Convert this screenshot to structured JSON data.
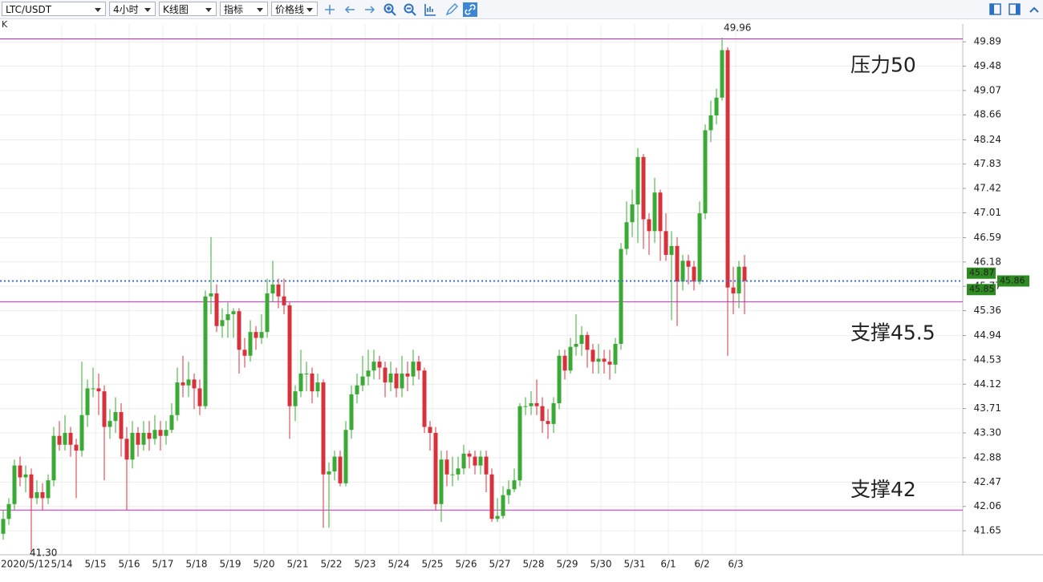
{
  "toolbar": {
    "symbol": "LTC/USDT",
    "period": "4小时",
    "chart_type": "K线图",
    "indicator": "指标",
    "price_line": "价格线"
  },
  "chart_data": {
    "type": "candlestick",
    "title": "K",
    "ylim": [
      41.3,
      50.19
    ],
    "yticks": [
      49.89,
      49.48,
      49.07,
      48.66,
      48.24,
      47.83,
      47.42,
      47.01,
      46.59,
      46.18,
      45.77,
      45.36,
      44.94,
      44.53,
      44.12,
      43.71,
      {
        "value": 43.3,
        "label": "43.30"
      },
      42.88,
      42.47,
      42.06,
      41.65
    ],
    "grid": true,
    "up_color": "#3aa935",
    "down_color": "#d7313c",
    "categories": [
      "2020/5/12",
      null,
      null,
      null,
      null,
      null,
      null,
      null,
      null,
      null,
      null,
      "5/14",
      null,
      null,
      null,
      null,
      null,
      "5/15",
      null,
      null,
      null,
      null,
      null,
      "5/16",
      null,
      null,
      null,
      null,
      null,
      "5/17",
      null,
      null,
      null,
      null,
      null,
      "5/18",
      null,
      null,
      null,
      null,
      null,
      "5/19",
      null,
      null,
      null,
      null,
      null,
      "5/20",
      null,
      null,
      null,
      null,
      null,
      "5/21",
      null,
      null,
      null,
      null,
      null,
      "5/22",
      null,
      null,
      null,
      null,
      null,
      "5/23",
      null,
      null,
      null,
      null,
      null,
      "5/24",
      null,
      null,
      null,
      null,
      null,
      "5/25",
      null,
      null,
      null,
      null,
      null,
      "5/26",
      null,
      null,
      null,
      null,
      null,
      "5/27",
      null,
      null,
      null,
      null,
      null,
      "5/28",
      null,
      null,
      null,
      null,
      null,
      "5/29",
      null,
      null,
      null,
      null,
      null,
      "5/30",
      null,
      null,
      null,
      null,
      null,
      "5/31",
      null,
      null,
      null,
      null,
      null,
      "6/1",
      null,
      null,
      null,
      null,
      null,
      "6/2",
      null,
      null,
      null,
      null,
      null,
      "6/3",
      null
    ],
    "candles": [
      [
        41.6,
        42.0,
        41.5,
        41.85
      ],
      [
        41.85,
        42.2,
        41.75,
        42.1
      ],
      [
        42.1,
        42.85,
        42.0,
        42.75
      ],
      [
        42.75,
        42.9,
        42.4,
        42.55
      ],
      [
        42.55,
        42.75,
        42.3,
        42.6
      ],
      [
        42.6,
        42.7,
        41.3,
        42.2
      ],
      [
        42.2,
        42.5,
        42.1,
        42.3
      ],
      [
        42.3,
        42.45,
        42.0,
        42.2
      ],
      [
        42.2,
        42.6,
        42.1,
        42.5
      ],
      [
        42.5,
        43.4,
        42.4,
        43.25
      ],
      [
        43.25,
        43.5,
        43.0,
        43.1
      ],
      [
        43.1,
        43.6,
        43.0,
        43.3
      ],
      [
        43.3,
        43.4,
        42.9,
        43.1
      ],
      [
        43.1,
        43.2,
        42.2,
        43.0
      ],
      [
        43.0,
        44.5,
        42.9,
        43.6
      ],
      [
        43.6,
        44.2,
        43.4,
        44.05
      ],
      [
        44.05,
        44.4,
        43.9,
        44.05
      ],
      [
        44.05,
        44.3,
        43.6,
        44.0
      ],
      [
        44.0,
        44.1,
        42.5,
        43.4
      ],
      [
        43.4,
        43.7,
        43.2,
        43.5
      ],
      [
        43.5,
        43.9,
        43.3,
        43.65
      ],
      [
        43.65,
        43.8,
        42.9,
        43.2
      ],
      [
        43.2,
        43.4,
        42.0,
        42.85
      ],
      [
        42.85,
        43.5,
        42.7,
        43.3
      ],
      [
        43.3,
        43.4,
        42.9,
        43.1
      ],
      [
        43.1,
        43.5,
        43.0,
        43.3
      ],
      [
        43.3,
        43.5,
        43.0,
        43.2
      ],
      [
        43.2,
        43.6,
        43.1,
        43.35
      ],
      [
        43.35,
        43.5,
        43.0,
        43.25
      ],
      [
        43.25,
        43.5,
        43.1,
        43.35
      ],
      [
        43.35,
        43.8,
        43.3,
        43.6
      ],
      [
        43.6,
        44.4,
        43.5,
        44.15
      ],
      [
        44.15,
        44.6,
        43.9,
        44.1
      ],
      [
        44.1,
        44.5,
        43.9,
        44.2
      ],
      [
        44.2,
        44.3,
        43.7,
        44.05
      ],
      [
        44.05,
        44.2,
        43.6,
        43.75
      ],
      [
        43.75,
        45.7,
        43.7,
        45.6
      ],
      [
        45.6,
        46.6,
        45.3,
        45.65
      ],
      [
        45.65,
        45.8,
        45.0,
        45.1
      ],
      [
        45.1,
        45.4,
        44.9,
        45.2
      ],
      [
        45.2,
        45.5,
        44.9,
        45.3
      ],
      [
        45.3,
        45.4,
        44.9,
        45.35
      ],
      [
        45.35,
        45.4,
        44.3,
        44.7
      ],
      [
        44.7,
        44.9,
        44.4,
        44.6
      ],
      [
        44.6,
        45.2,
        44.5,
        45.0
      ],
      [
        45.0,
        45.1,
        44.7,
        44.9
      ],
      [
        44.9,
        45.3,
        44.8,
        45.0
      ],
      [
        45.0,
        45.9,
        44.9,
        45.65
      ],
      [
        45.65,
        46.2,
        45.5,
        45.8
      ],
      [
        45.8,
        45.9,
        45.4,
        45.6
      ],
      [
        45.6,
        45.9,
        45.3,
        45.45
      ],
      [
        45.45,
        45.5,
        43.2,
        43.75
      ],
      [
        43.75,
        44.1,
        43.5,
        44.0
      ],
      [
        44.0,
        44.7,
        43.9,
        44.3
      ],
      [
        44.3,
        44.5,
        44.0,
        44.3
      ],
      [
        44.3,
        44.4,
        43.8,
        44.0
      ],
      [
        44.0,
        44.3,
        43.9,
        44.15
      ],
      [
        44.15,
        44.2,
        41.7,
        42.6
      ],
      [
        42.6,
        42.8,
        41.7,
        42.65
      ],
      [
        42.65,
        43.0,
        42.5,
        42.9
      ],
      [
        42.9,
        43.0,
        42.4,
        42.45
      ],
      [
        42.45,
        43.5,
        42.4,
        43.35
      ],
      [
        43.35,
        44.1,
        43.2,
        43.95
      ],
      [
        43.95,
        44.3,
        43.8,
        44.1
      ],
      [
        44.1,
        44.6,
        44.0,
        44.25
      ],
      [
        44.25,
        44.7,
        44.1,
        44.35
      ],
      [
        44.35,
        44.7,
        44.2,
        44.5
      ],
      [
        44.5,
        44.6,
        44.2,
        44.4
      ],
      [
        44.4,
        44.5,
        43.9,
        44.15
      ],
      [
        44.15,
        44.5,
        44.0,
        44.3
      ],
      [
        44.3,
        44.4,
        43.9,
        44.05
      ],
      [
        44.05,
        44.6,
        43.9,
        44.3
      ],
      [
        44.3,
        44.5,
        44.0,
        44.25
      ],
      [
        44.25,
        44.7,
        44.1,
        44.5
      ],
      [
        44.5,
        44.6,
        44.2,
        44.35
      ],
      [
        44.35,
        44.4,
        43.3,
        43.4
      ],
      [
        43.4,
        43.5,
        43.0,
        43.3
      ],
      [
        43.3,
        43.4,
        42.0,
        42.1
      ],
      [
        42.1,
        43.0,
        41.8,
        42.85
      ],
      [
        42.85,
        43.0,
        42.4,
        42.6
      ],
      [
        42.6,
        42.9,
        42.4,
        42.6
      ],
      [
        42.6,
        42.9,
        42.5,
        42.7
      ],
      [
        42.7,
        43.1,
        42.6,
        42.95
      ],
      [
        42.95,
        43.0,
        42.7,
        42.9
      ],
      [
        42.9,
        43.0,
        42.6,
        42.75
      ],
      [
        42.75,
        43.0,
        42.6,
        42.9
      ],
      [
        42.9,
        43.0,
        42.3,
        42.6
      ],
      [
        42.6,
        42.7,
        41.8,
        41.85
      ],
      [
        41.85,
        42.2,
        41.8,
        41.9
      ],
      [
        41.9,
        42.4,
        41.85,
        42.25
      ],
      [
        42.25,
        42.5,
        42.1,
        42.35
      ],
      [
        42.35,
        42.7,
        42.3,
        42.5
      ],
      [
        42.5,
        43.8,
        42.4,
        43.75
      ],
      [
        43.75,
        43.9,
        43.6,
        43.75
      ],
      [
        43.75,
        44.0,
        43.6,
        43.8
      ],
      [
        43.8,
        44.2,
        43.6,
        43.75
      ],
      [
        43.75,
        43.9,
        43.3,
        43.5
      ],
      [
        43.5,
        43.7,
        43.2,
        43.45
      ],
      [
        43.45,
        43.9,
        43.3,
        43.8
      ],
      [
        43.8,
        44.7,
        43.7,
        44.6
      ],
      [
        44.6,
        44.7,
        44.2,
        44.35
      ],
      [
        44.35,
        44.9,
        44.3,
        44.75
      ],
      [
        44.75,
        45.3,
        44.6,
        44.8
      ],
      [
        44.8,
        45.1,
        44.6,
        44.95
      ],
      [
        44.95,
        45.0,
        44.4,
        44.7
      ],
      [
        44.7,
        44.8,
        44.3,
        44.5
      ],
      [
        44.5,
        44.8,
        44.3,
        44.55
      ],
      [
        44.55,
        44.7,
        44.3,
        44.5
      ],
      [
        44.5,
        44.7,
        44.2,
        44.45
      ],
      [
        44.45,
        44.9,
        44.3,
        44.8
      ],
      [
        44.8,
        46.5,
        44.7,
        46.4
      ],
      [
        46.4,
        47.2,
        46.3,
        46.85
      ],
      [
        46.85,
        47.4,
        46.6,
        47.15
      ],
      [
        47.15,
        48.1,
        46.5,
        47.95
      ],
      [
        47.95,
        48.0,
        46.4,
        46.9
      ],
      [
        46.9,
        47.0,
        46.3,
        46.7
      ],
      [
        46.7,
        47.6,
        46.5,
        47.35
      ],
      [
        47.35,
        47.4,
        46.2,
        46.7
      ],
      [
        46.7,
        47.0,
        46.2,
        46.3
      ],
      [
        46.3,
        46.7,
        45.2,
        46.45
      ],
      [
        46.45,
        46.6,
        45.1,
        45.85
      ],
      [
        45.85,
        46.3,
        45.7,
        46.2
      ],
      [
        46.2,
        46.3,
        45.8,
        46.1
      ],
      [
        46.1,
        46.2,
        45.7,
        45.85
      ],
      [
        45.85,
        47.2,
        45.8,
        47.0
      ],
      [
        47.0,
        48.5,
        46.9,
        48.4
      ],
      [
        48.4,
        48.9,
        48.2,
        48.65
      ],
      [
        48.65,
        49.1,
        48.5,
        48.95
      ],
      [
        48.95,
        49.96,
        48.9,
        49.75
      ],
      [
        49.75,
        49.8,
        44.6,
        45.75
      ],
      [
        45.75,
        46.1,
        45.3,
        45.65
      ],
      [
        45.65,
        46.2,
        45.4,
        46.1
      ],
      [
        46.1,
        46.3,
        45.3,
        45.86
      ]
    ],
    "max_label": "49.96",
    "min_label": "41.30",
    "last_price": {
      "value": 45.86,
      "label": "45.86",
      "color": "#3d6fd6"
    },
    "bid": {
      "value": 45.87,
      "label": "45.87"
    },
    "ask": {
      "value": 45.85,
      "label": "45.85"
    },
    "levels": [
      {
        "value": 49.94,
        "label": "压力50"
      },
      {
        "value": 45.51,
        "label": "支撑45.5"
      },
      {
        "value": 42.0,
        "label": "支撑42"
      }
    ],
    "level_color": "#cc22cc",
    "annotation_color": "#e0262e"
  }
}
